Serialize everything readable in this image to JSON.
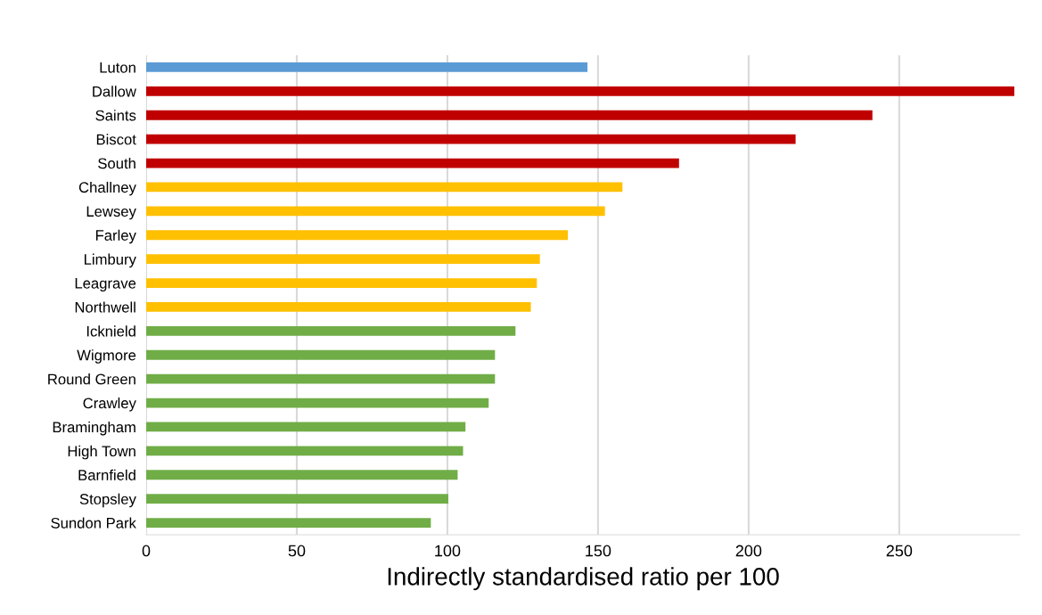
{
  "chart_data": {
    "type": "bar",
    "orientation": "horizontal",
    "xlabel": "Indirectly standardised ratio per 100",
    "categories": [
      "Luton",
      "Dallow",
      "Saints",
      "Biscot",
      "South",
      "Challney",
      "Lewsey",
      "Farley",
      "Limbury",
      "Leagrave",
      "Northwell",
      "Icknield",
      "Wigmore",
      "Round Green",
      "Crawley",
      "Bramingham",
      "High Town",
      "Barnfield",
      "Stopsley",
      "Sundon Park"
    ],
    "values": [
      146.5,
      288.2,
      241.1,
      215.6,
      176.9,
      158.1,
      152.3,
      140.0,
      130.7,
      129.7,
      127.7,
      122.6,
      115.8,
      115.8,
      113.7,
      106.0,
      105.2,
      103.4,
      100.3,
      94.5
    ],
    "colors": [
      "#5b9bd5",
      "#c00000",
      "#c00000",
      "#c00000",
      "#c00000",
      "#ffc000",
      "#ffc000",
      "#ffc000",
      "#ffc000",
      "#ffc000",
      "#ffc000",
      "#70ad47",
      "#70ad47",
      "#70ad47",
      "#70ad47",
      "#70ad47",
      "#70ad47",
      "#70ad47",
      "#70ad47",
      "#70ad47"
    ],
    "xlim": [
      0,
      290
    ],
    "xticks": [
      0,
      50,
      100,
      150,
      200,
      250
    ],
    "grid": "x",
    "legend": false
  }
}
